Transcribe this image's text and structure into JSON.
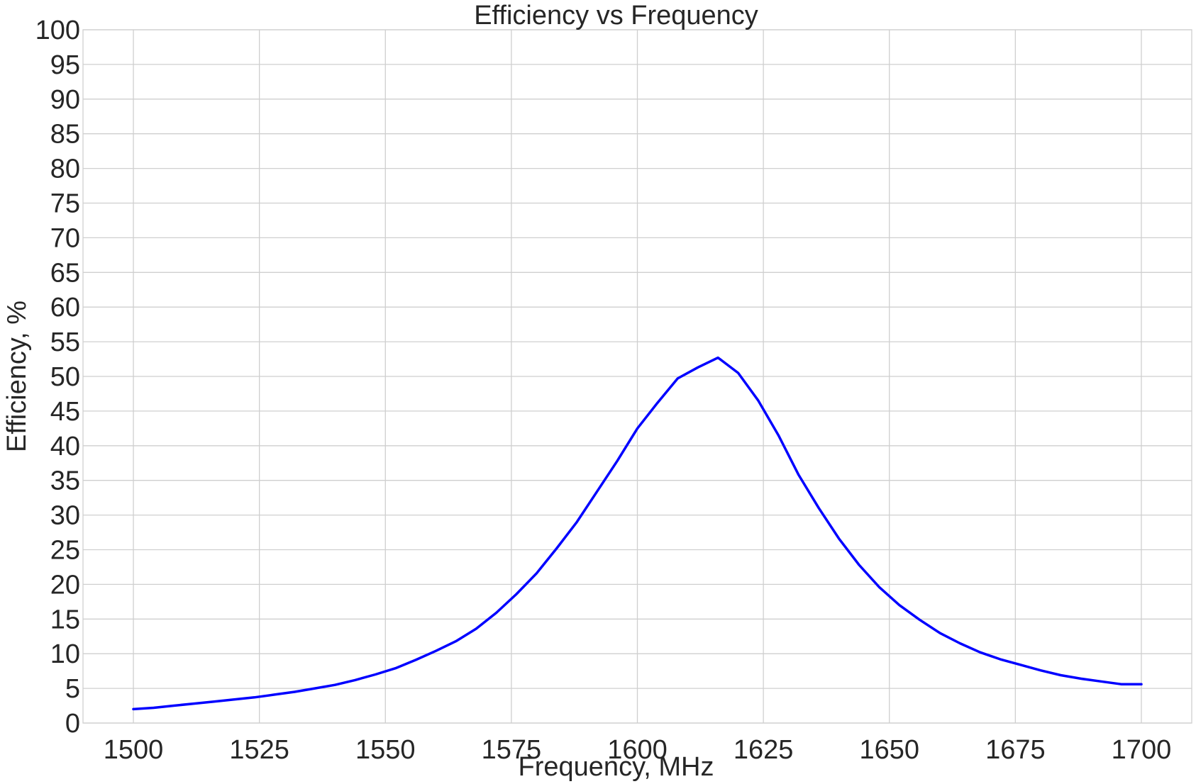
{
  "chart_data": {
    "type": "line",
    "title": "Efficiency vs Frequency",
    "xlabel": "Frequency, MHz",
    "ylabel": "Efficiency, %",
    "xlim": [
      1490,
      1710
    ],
    "ylim": [
      0,
      100
    ],
    "xticks": [
      1500,
      1525,
      1550,
      1575,
      1600,
      1625,
      1650,
      1675,
      1700
    ],
    "yticks": [
      0,
      5,
      10,
      15,
      20,
      25,
      30,
      35,
      40,
      45,
      50,
      55,
      60,
      65,
      70,
      75,
      80,
      85,
      90,
      95,
      100
    ],
    "grid": true,
    "series": [
      {
        "name": "Efficiency",
        "color": "#0000ff",
        "x": [
          1500,
          1504,
          1508,
          1512,
          1516,
          1520,
          1524,
          1528,
          1532,
          1536,
          1540,
          1544,
          1548,
          1552,
          1556,
          1560,
          1564,
          1568,
          1572,
          1576,
          1580,
          1584,
          1588,
          1592,
          1596,
          1600,
          1604,
          1608,
          1612,
          1616,
          1620,
          1624,
          1628,
          1632,
          1636,
          1640,
          1644,
          1648,
          1652,
          1656,
          1660,
          1664,
          1668,
          1672,
          1676,
          1680,
          1684,
          1688,
          1692,
          1696,
          1700
        ],
        "y": [
          2.0,
          2.2,
          2.5,
          2.8,
          3.1,
          3.4,
          3.7,
          4.1,
          4.5,
          5.0,
          5.5,
          6.2,
          7.0,
          7.9,
          9.1,
          10.4,
          11.8,
          13.6,
          15.9,
          18.6,
          21.6,
          25.2,
          29.0,
          33.4,
          37.8,
          42.5,
          46.2,
          49.7,
          51.3,
          52.7,
          50.5,
          46.5,
          41.5,
          35.8,
          31.0,
          26.6,
          22.8,
          19.6,
          17.0,
          14.9,
          13.0,
          11.5,
          10.2,
          9.2,
          8.4,
          7.6,
          6.9,
          6.4,
          6.0,
          5.6,
          5.6
        ]
      }
    ]
  }
}
